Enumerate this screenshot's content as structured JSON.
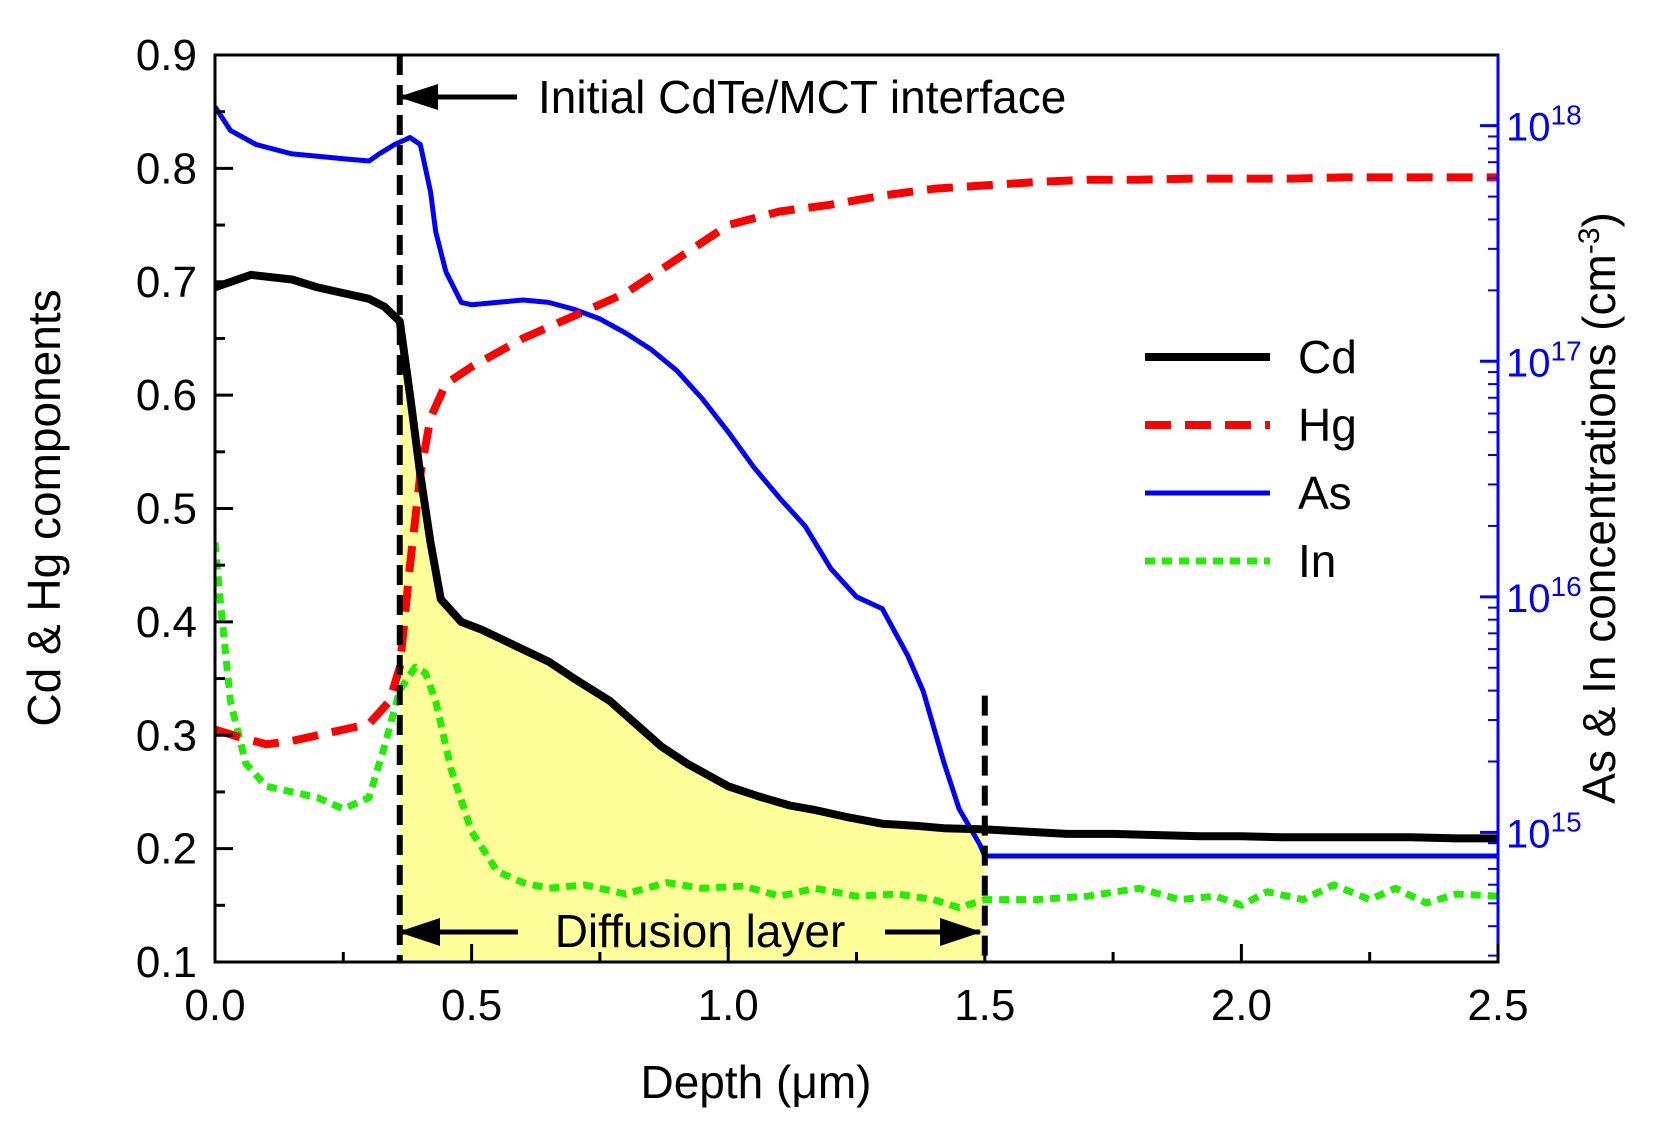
{
  "chart_data": {
    "type": "line",
    "xlabel": "Depth (μm)",
    "ylabel": "Cd & Hg components",
    "y2label": "As & In concentrations (cm",
    "y2label_sup": "-3",
    "y2label_end": ")",
    "xlim": [
      0.0,
      2.5
    ],
    "ylim": [
      0.1,
      0.9
    ],
    "y2lim_log": [
      14.45,
      18.3
    ],
    "x_ticks": [
      "0.0",
      "0.5",
      "1.0",
      "1.5",
      "2.0",
      "2.5"
    ],
    "y_ticks": [
      "0.1",
      "0.2",
      "0.3",
      "0.4",
      "0.5",
      "0.6",
      "0.7",
      "0.8",
      "0.9"
    ],
    "y2_ticks": [
      {
        "base": "10",
        "exp": "15",
        "value": 15
      },
      {
        "base": "10",
        "exp": "16",
        "value": 16
      },
      {
        "base": "10",
        "exp": "17",
        "value": 17
      },
      {
        "base": "10",
        "exp": "18",
        "value": 18
      }
    ],
    "colors": {
      "Cd": "#000000",
      "Hg": "#ff0000",
      "As": "#0000ff",
      "In": "#22ee00",
      "fill": "#ffff99"
    },
    "series": [
      {
        "name": "Cd",
        "axis": "left",
        "style": "solid",
        "x": [
          0.0,
          0.07,
          0.15,
          0.2,
          0.25,
          0.3,
          0.33,
          0.36,
          0.38,
          0.4,
          0.42,
          0.44,
          0.48,
          0.52,
          0.58,
          0.65,
          0.7,
          0.77,
          0.82,
          0.87,
          0.92,
          1.0,
          1.06,
          1.12,
          1.17,
          1.23,
          1.3,
          1.37,
          1.42,
          1.5,
          1.58,
          1.66,
          1.75,
          1.83,
          1.92,
          2.0,
          2.08,
          2.17,
          2.25,
          2.33,
          2.42,
          2.5
        ],
        "values": [
          0.695,
          0.706,
          0.702,
          0.695,
          0.69,
          0.685,
          0.678,
          0.665,
          0.6,
          0.53,
          0.47,
          0.42,
          0.4,
          0.393,
          0.38,
          0.365,
          0.35,
          0.33,
          0.31,
          0.29,
          0.275,
          0.255,
          0.246,
          0.238,
          0.234,
          0.228,
          0.222,
          0.22,
          0.218,
          0.217,
          0.215,
          0.213,
          0.213,
          0.212,
          0.211,
          0.211,
          0.21,
          0.21,
          0.21,
          0.21,
          0.209,
          0.209
        ]
      },
      {
        "name": "Hg",
        "axis": "left",
        "style": "dashed",
        "x": [
          0.0,
          0.05,
          0.1,
          0.15,
          0.2,
          0.25,
          0.3,
          0.34,
          0.36,
          0.38,
          0.4,
          0.42,
          0.45,
          0.5,
          0.6,
          0.7,
          0.8,
          0.9,
          1.0,
          1.1,
          1.2,
          1.3,
          1.4,
          1.5,
          1.6,
          1.7,
          1.8,
          1.9,
          2.0,
          2.1,
          2.2,
          2.3,
          2.4,
          2.5
        ],
        "values": [
          0.305,
          0.298,
          0.292,
          0.295,
          0.3,
          0.305,
          0.31,
          0.33,
          0.36,
          0.45,
          0.53,
          0.58,
          0.61,
          0.625,
          0.65,
          0.67,
          0.69,
          0.72,
          0.75,
          0.762,
          0.768,
          0.776,
          0.782,
          0.785,
          0.788,
          0.79,
          0.79,
          0.791,
          0.791,
          0.791,
          0.792,
          0.792,
          0.792,
          0.792
        ]
      },
      {
        "name": "As",
        "axis": "right",
        "style": "solid",
        "x": [
          0.0,
          0.03,
          0.08,
          0.15,
          0.2,
          0.25,
          0.3,
          0.32,
          0.35,
          0.38,
          0.4,
          0.42,
          0.43,
          0.45,
          0.48,
          0.5,
          0.55,
          0.6,
          0.65,
          0.7,
          0.75,
          0.8,
          0.85,
          0.9,
          0.95,
          1.0,
          1.05,
          1.1,
          1.15,
          1.2,
          1.25,
          1.3,
          1.35,
          1.38,
          1.42,
          1.45,
          1.49,
          1.5,
          1.6,
          1.8,
          2.0,
          2.2,
          2.4,
          2.5
        ],
        "values": [
          18.08,
          17.98,
          17.92,
          17.88,
          17.87,
          17.86,
          17.85,
          17.88,
          17.92,
          17.95,
          17.92,
          17.72,
          17.55,
          17.38,
          17.25,
          17.24,
          17.25,
          17.26,
          17.25,
          17.22,
          17.18,
          17.12,
          17.05,
          16.96,
          16.84,
          16.7,
          16.55,
          16.42,
          16.3,
          16.12,
          16.0,
          15.95,
          15.75,
          15.6,
          15.3,
          15.1,
          14.95,
          14.9,
          14.9,
          14.9,
          14.9,
          14.9,
          14.9,
          14.9
        ]
      },
      {
        "name": "In",
        "axis": "left",
        "style": "dotted",
        "x": [
          0.0,
          0.01,
          0.03,
          0.06,
          0.1,
          0.15,
          0.2,
          0.25,
          0.3,
          0.33,
          0.36,
          0.39,
          0.41,
          0.43,
          0.46,
          0.5,
          0.55,
          0.6,
          0.65,
          0.72,
          0.8,
          0.88,
          0.95,
          1.03,
          1.1,
          1.17,
          1.25,
          1.33,
          1.4,
          1.45,
          1.5,
          1.6,
          1.7,
          1.8,
          1.88,
          1.95,
          2.0,
          2.05,
          2.12,
          2.18,
          2.25,
          2.3,
          2.36,
          2.42,
          2.5
        ],
        "values": [
          0.47,
          0.42,
          0.33,
          0.275,
          0.255,
          0.25,
          0.245,
          0.235,
          0.245,
          0.29,
          0.34,
          0.36,
          0.355,
          0.33,
          0.27,
          0.215,
          0.18,
          0.17,
          0.165,
          0.168,
          0.16,
          0.17,
          0.165,
          0.167,
          0.158,
          0.165,
          0.158,
          0.16,
          0.155,
          0.148,
          0.155,
          0.155,
          0.158,
          0.165,
          0.155,
          0.158,
          0.15,
          0.162,
          0.155,
          0.168,
          0.155,
          0.165,
          0.152,
          0.16,
          0.158
        ]
      }
    ],
    "annotations": {
      "interface_text": "Initial CdTe/MCT interface",
      "diffusion_text": "Diffusion layer",
      "interface_x": 0.36,
      "diffusion_end_x": 1.5
    }
  }
}
